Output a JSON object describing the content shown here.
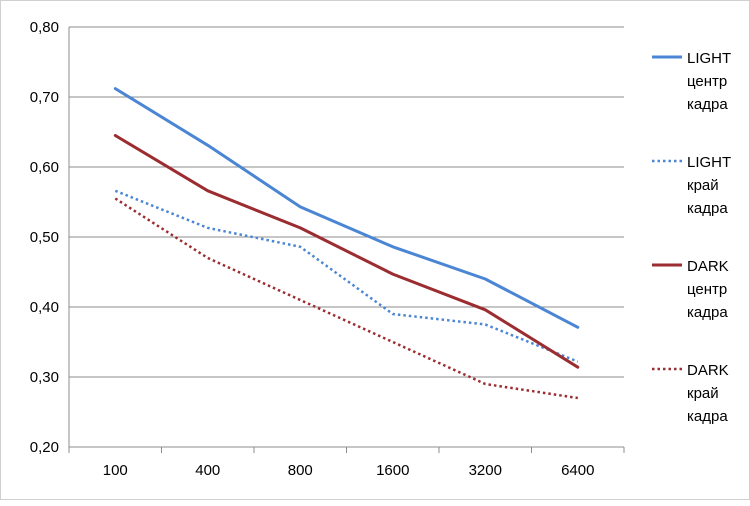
{
  "chart_data": {
    "type": "line",
    "title": "",
    "xlabel": "",
    "ylabel": "",
    "categories": [
      "100",
      "400",
      "800",
      "1600",
      "3200",
      "6400"
    ],
    "ylim": [
      0.2,
      0.8
    ],
    "yticks": [
      "0,20",
      "0,30",
      "0,40",
      "0,50",
      "0,60",
      "0,70",
      "0,80"
    ],
    "grid": true,
    "legend_position": "right",
    "series": [
      {
        "name": "LIGHT центр кадра",
        "legend_lines": [
          "LIGHT",
          "центр",
          "кадра"
        ],
        "color": "#4a86d4",
        "style": "solid",
        "values": [
          0.712,
          0.631,
          0.543,
          0.486,
          0.44,
          0.371
        ]
      },
      {
        "name": "LIGHT край кадра",
        "legend_lines": [
          "LIGHT",
          "край",
          "кадра"
        ],
        "color": "#4a86d4",
        "style": "dotted",
        "values": [
          0.566,
          0.513,
          0.486,
          0.39,
          0.375,
          0.322
        ]
      },
      {
        "name": "DARK центр кадра",
        "legend_lines": [
          "DARK",
          "центр",
          "кадра"
        ],
        "color": "#9b2d30",
        "style": "solid",
        "values": [
          0.645,
          0.566,
          0.513,
          0.447,
          0.396,
          0.314
        ]
      },
      {
        "name": "DARK край кадра",
        "legend_lines": [
          "DARK",
          "край",
          "кадра"
        ],
        "color": "#9b2d30",
        "style": "dotted",
        "values": [
          0.555,
          0.47,
          0.41,
          0.35,
          0.29,
          0.27
        ]
      }
    ]
  }
}
